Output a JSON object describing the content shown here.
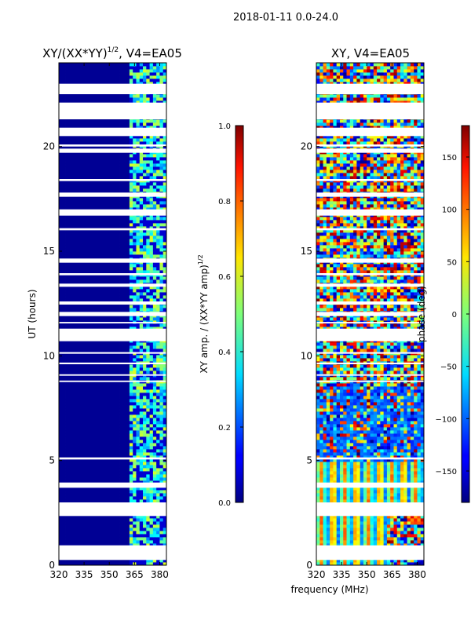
{
  "figure": {
    "suptitle": "2018-01-11 0.0-24.0",
    "xlabel_shared": "frequency (MHz)"
  },
  "colormap": "jet",
  "chart_data": [
    {
      "type": "heatmap",
      "title": "XY/(XX*YY)^1/2, V4=EA05",
      "title_main": "XY/(XX*YY)",
      "title_sup": "1/2",
      "title_tail": ", V4=EA05",
      "xlabel": "",
      "ylabel": "UT (hours)",
      "xlim": [
        320,
        384
      ],
      "ylim": [
        0,
        24
      ],
      "xticks": [
        320,
        335,
        350,
        365,
        380
      ],
      "yticks": [
        0,
        5,
        10,
        15,
        20
      ],
      "quantity": "normalized cross-correlation amplitude",
      "description_values": {
        "low_freq_region_320_360": 0.0,
        "high_freq_region_360_382": "0.2-0.6 patchy"
      },
      "colorbar": {
        "label": "XY amp. / (XX*YY amp)^1/2",
        "label_main": "XY amp. / (XX*YY amp)",
        "label_sup": "1/2",
        "range": [
          0.0,
          1.0
        ],
        "ticks": [
          "0.0",
          "0.2",
          "0.4",
          "0.6",
          "0.8",
          "1.0"
        ]
      }
    },
    {
      "type": "heatmap",
      "title": "XY, V4=EA05",
      "xlabel": "frequency (MHz)",
      "ylabel": "",
      "xlim": [
        320,
        384
      ],
      "ylim": [
        0,
        24
      ],
      "xticks": [
        320,
        335,
        350,
        365,
        380
      ],
      "yticks": [
        0,
        5,
        10,
        15,
        20
      ],
      "quantity": "cross-correlation phase",
      "colorbar": {
        "label": "phase (deg)",
        "range": [
          -180,
          180
        ],
        "ticks": [
          "150",
          "100",
          "50",
          "0",
          "−50",
          "−100",
          "−150"
        ]
      }
    }
  ],
  "flagged_hour_ranges": [
    [
      0.25,
      0.95
    ],
    [
      2.35,
      3.0
    ],
    [
      3.7,
      3.95
    ],
    [
      5.05,
      5.15
    ],
    [
      8.75,
      8.82
    ],
    [
      9.05,
      9.12
    ],
    [
      9.6,
      9.68
    ],
    [
      10.1,
      10.18
    ],
    [
      10.7,
      11.3
    ],
    [
      11.55,
      11.62
    ],
    [
      11.9,
      12.1
    ],
    [
      12.45,
      12.6
    ],
    [
      13.3,
      13.45
    ],
    [
      13.85,
      13.95
    ],
    [
      14.45,
      14.65
    ],
    [
      16.0,
      16.1
    ],
    [
      16.7,
      17.0
    ],
    [
      17.6,
      17.8
    ],
    [
      18.35,
      18.45
    ],
    [
      19.7,
      19.9
    ],
    [
      20.0,
      20.1
    ],
    [
      20.5,
      20.9
    ],
    [
      21.3,
      22.1
    ],
    [
      22.5,
      23.0
    ]
  ]
}
